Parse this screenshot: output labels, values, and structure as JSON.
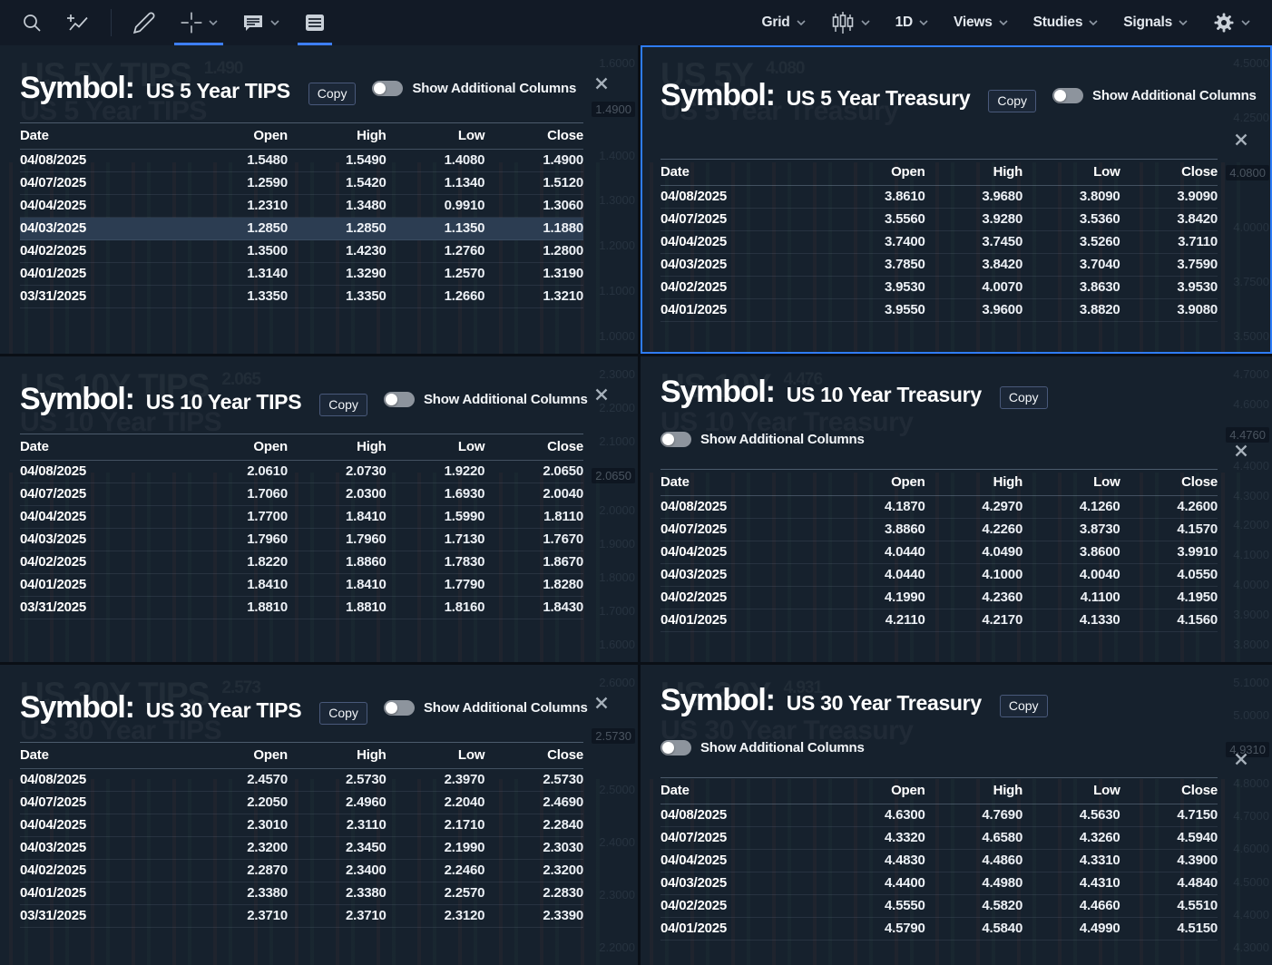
{
  "toolbar": {
    "grid_label": "Grid",
    "timeframe_label": "1D",
    "views_label": "Views",
    "studies_label": "Studies",
    "signals_label": "Signals"
  },
  "panels": [
    {
      "symbol_label": "Symbol:",
      "symbol": "US 5 Year TIPS",
      "copy_label": "Copy",
      "toggle_label": "Show Additional Columns",
      "selected": false,
      "highlight_index": 3,
      "watermark": {
        "line1": "US 5Y TIPS",
        "value": "1.490",
        "line2": "US 5 Year TIPS"
      },
      "axis": [
        {
          "v": "1.6000"
        },
        {
          "v": "1.4900",
          "tag": true
        },
        {
          "v": "1.4000"
        },
        {
          "v": "1.3000"
        },
        {
          "v": "1.2000"
        },
        {
          "v": "1.1000"
        },
        {
          "v": "1.0000"
        }
      ],
      "columns": [
        "Date",
        "Open",
        "High",
        "Low",
        "Close"
      ],
      "rows": [
        [
          "04/08/2025",
          "1.5480",
          "1.5490",
          "1.4080",
          "1.4900"
        ],
        [
          "04/07/2025",
          "1.2590",
          "1.5420",
          "1.1340",
          "1.5120"
        ],
        [
          "04/04/2025",
          "1.2310",
          "1.3480",
          "0.9910",
          "1.3060"
        ],
        [
          "04/03/2025",
          "1.2850",
          "1.2850",
          "1.1350",
          "1.1880"
        ],
        [
          "04/02/2025",
          "1.3500",
          "1.4230",
          "1.2760",
          "1.2800"
        ],
        [
          "04/01/2025",
          "1.3140",
          "1.3290",
          "1.2570",
          "1.3190"
        ],
        [
          "03/31/2025",
          "1.3350",
          "1.3350",
          "1.2660",
          "1.3210"
        ]
      ]
    },
    {
      "symbol_label": "Symbol:",
      "symbol": "US 5 Year Treasury",
      "copy_label": "Copy",
      "toggle_label": "Show Additional Columns",
      "selected": true,
      "watermark": {
        "line1": "US 5Y",
        "value": "4.080",
        "line2": "US 5 Year Treasury"
      },
      "axis": [
        {
          "v": "4.5000"
        },
        {
          "v": "4.2500"
        },
        {
          "v": "4.0800",
          "tag": true
        },
        {
          "v": "4.0000"
        },
        {
          "v": "3.7500"
        },
        {
          "v": "3.5000"
        }
      ],
      "columns": [
        "Date",
        "Open",
        "High",
        "Low",
        "Close"
      ],
      "rows": [
        [
          "04/08/2025",
          "3.8610",
          "3.9680",
          "3.8090",
          "3.9090"
        ],
        [
          "04/07/2025",
          "3.5560",
          "3.9280",
          "3.5360",
          "3.8420"
        ],
        [
          "04/04/2025",
          "3.7400",
          "3.7450",
          "3.5260",
          "3.7110"
        ],
        [
          "04/03/2025",
          "3.7850",
          "3.8420",
          "3.7040",
          "3.7590"
        ],
        [
          "04/02/2025",
          "3.9530",
          "4.0070",
          "3.8630",
          "3.9530"
        ],
        [
          "04/01/2025",
          "3.9550",
          "3.9600",
          "3.8820",
          "3.9080"
        ]
      ]
    },
    {
      "symbol_label": "Symbol:",
      "symbol": "US 10 Year TIPS",
      "copy_label": "Copy",
      "toggle_label": "Show Additional Columns",
      "selected": false,
      "watermark": {
        "line1": "US 10Y TIPS",
        "value": "2.065",
        "line2": "US 10 Year TIPS"
      },
      "axis": [
        {
          "v": "2.3000"
        },
        {
          "v": "2.2000"
        },
        {
          "v": "2.1000"
        },
        {
          "v": "2.0650",
          "tag": true
        },
        {
          "v": "2.0000"
        },
        {
          "v": "1.9000"
        },
        {
          "v": "1.8000"
        },
        {
          "v": "1.7000"
        },
        {
          "v": "1.6000"
        }
      ],
      "columns": [
        "Date",
        "Open",
        "High",
        "Low",
        "Close"
      ],
      "rows": [
        [
          "04/08/2025",
          "2.0610",
          "2.0730",
          "1.9220",
          "2.0650"
        ],
        [
          "04/07/2025",
          "1.7060",
          "2.0300",
          "1.6930",
          "2.0040"
        ],
        [
          "04/04/2025",
          "1.7700",
          "1.8410",
          "1.5990",
          "1.8110"
        ],
        [
          "04/03/2025",
          "1.7960",
          "1.7960",
          "1.7130",
          "1.7670"
        ],
        [
          "04/02/2025",
          "1.8220",
          "1.8860",
          "1.7830",
          "1.8670"
        ],
        [
          "04/01/2025",
          "1.8410",
          "1.8410",
          "1.7790",
          "1.8280"
        ],
        [
          "03/31/2025",
          "1.8810",
          "1.8810",
          "1.8160",
          "1.8430"
        ]
      ]
    },
    {
      "symbol_label": "Symbol:",
      "symbol": "US 10 Year Treasury",
      "copy_label": "Copy",
      "toggle_label": "Show Additional Columns",
      "selected": false,
      "watermark": {
        "line1": "US 10Y",
        "value": "4.476",
        "line2": "US 10 Year Treasury"
      },
      "axis": [
        {
          "v": "4.7000"
        },
        {
          "v": "4.6000"
        },
        {
          "v": "4.4760",
          "tag": true
        },
        {
          "v": "4.4000"
        },
        {
          "v": "4.3000"
        },
        {
          "v": "4.2000"
        },
        {
          "v": "4.1000"
        },
        {
          "v": "4.0000"
        },
        {
          "v": "3.9000"
        },
        {
          "v": "3.8000"
        }
      ],
      "columns": [
        "Date",
        "Open",
        "High",
        "Low",
        "Close"
      ],
      "rows": [
        [
          "04/08/2025",
          "4.1870",
          "4.2970",
          "4.1260",
          "4.2600"
        ],
        [
          "04/07/2025",
          "3.8860",
          "4.2260",
          "3.8730",
          "4.1570"
        ],
        [
          "04/04/2025",
          "4.0440",
          "4.0490",
          "3.8600",
          "3.9910"
        ],
        [
          "04/03/2025",
          "4.0440",
          "4.1000",
          "4.0040",
          "4.0550"
        ],
        [
          "04/02/2025",
          "4.1990",
          "4.2360",
          "4.1100",
          "4.1950"
        ],
        [
          "04/01/2025",
          "4.2110",
          "4.2170",
          "4.1330",
          "4.1560"
        ]
      ]
    },
    {
      "symbol_label": "Symbol:",
      "symbol": "US 30 Year TIPS",
      "copy_label": "Copy",
      "toggle_label": "Show Additional Columns",
      "selected": false,
      "watermark": {
        "line1": "US 30Y TIPS",
        "value": "2.573",
        "line2": "US 30 Year TIPS"
      },
      "axis": [
        {
          "v": "2.6000"
        },
        {
          "v": "2.5730",
          "tag": true
        },
        {
          "v": "2.5000"
        },
        {
          "v": "2.4000"
        },
        {
          "v": "2.3000"
        },
        {
          "v": "2.2000"
        }
      ],
      "columns": [
        "Date",
        "Open",
        "High",
        "Low",
        "Close"
      ],
      "rows": [
        [
          "04/08/2025",
          "2.4570",
          "2.5730",
          "2.3970",
          "2.5730"
        ],
        [
          "04/07/2025",
          "2.2050",
          "2.4960",
          "2.2040",
          "2.4690"
        ],
        [
          "04/04/2025",
          "2.3010",
          "2.3110",
          "2.1710",
          "2.2840"
        ],
        [
          "04/03/2025",
          "2.3200",
          "2.3450",
          "2.1990",
          "2.3030"
        ],
        [
          "04/02/2025",
          "2.2870",
          "2.3400",
          "2.2460",
          "2.3200"
        ],
        [
          "04/01/2025",
          "2.3380",
          "2.3380",
          "2.2570",
          "2.2830"
        ],
        [
          "03/31/2025",
          "2.3710",
          "2.3710",
          "2.3120",
          "2.3390"
        ]
      ]
    },
    {
      "symbol_label": "Symbol:",
      "symbol": "US 30 Year Treasury",
      "copy_label": "Copy",
      "toggle_label": "Show Additional Columns",
      "selected": false,
      "watermark": {
        "line1": "US 30Y",
        "value": "4.931",
        "line2": "US 30 Year Treasury"
      },
      "axis": [
        {
          "v": "5.1000"
        },
        {
          "v": "5.0000"
        },
        {
          "v": "4.9310",
          "tag": true
        },
        {
          "v": "4.8000"
        },
        {
          "v": "4.7000"
        },
        {
          "v": "4.6000"
        },
        {
          "v": "4.5000"
        },
        {
          "v": "4.4000"
        },
        {
          "v": "4.3000"
        }
      ],
      "columns": [
        "Date",
        "Open",
        "High",
        "Low",
        "Close"
      ],
      "rows": [
        [
          "04/08/2025",
          "4.6300",
          "4.7690",
          "4.5630",
          "4.7150"
        ],
        [
          "04/07/2025",
          "4.3320",
          "4.6580",
          "4.3260",
          "4.5940"
        ],
        [
          "04/04/2025",
          "4.4830",
          "4.4860",
          "4.3310",
          "4.3900"
        ],
        [
          "04/03/2025",
          "4.4400",
          "4.4980",
          "4.4310",
          "4.4840"
        ],
        [
          "04/02/2025",
          "4.5550",
          "4.5820",
          "4.4660",
          "4.5510"
        ],
        [
          "04/01/2025",
          "4.5790",
          "4.5840",
          "4.4990",
          "4.5150"
        ]
      ]
    }
  ]
}
